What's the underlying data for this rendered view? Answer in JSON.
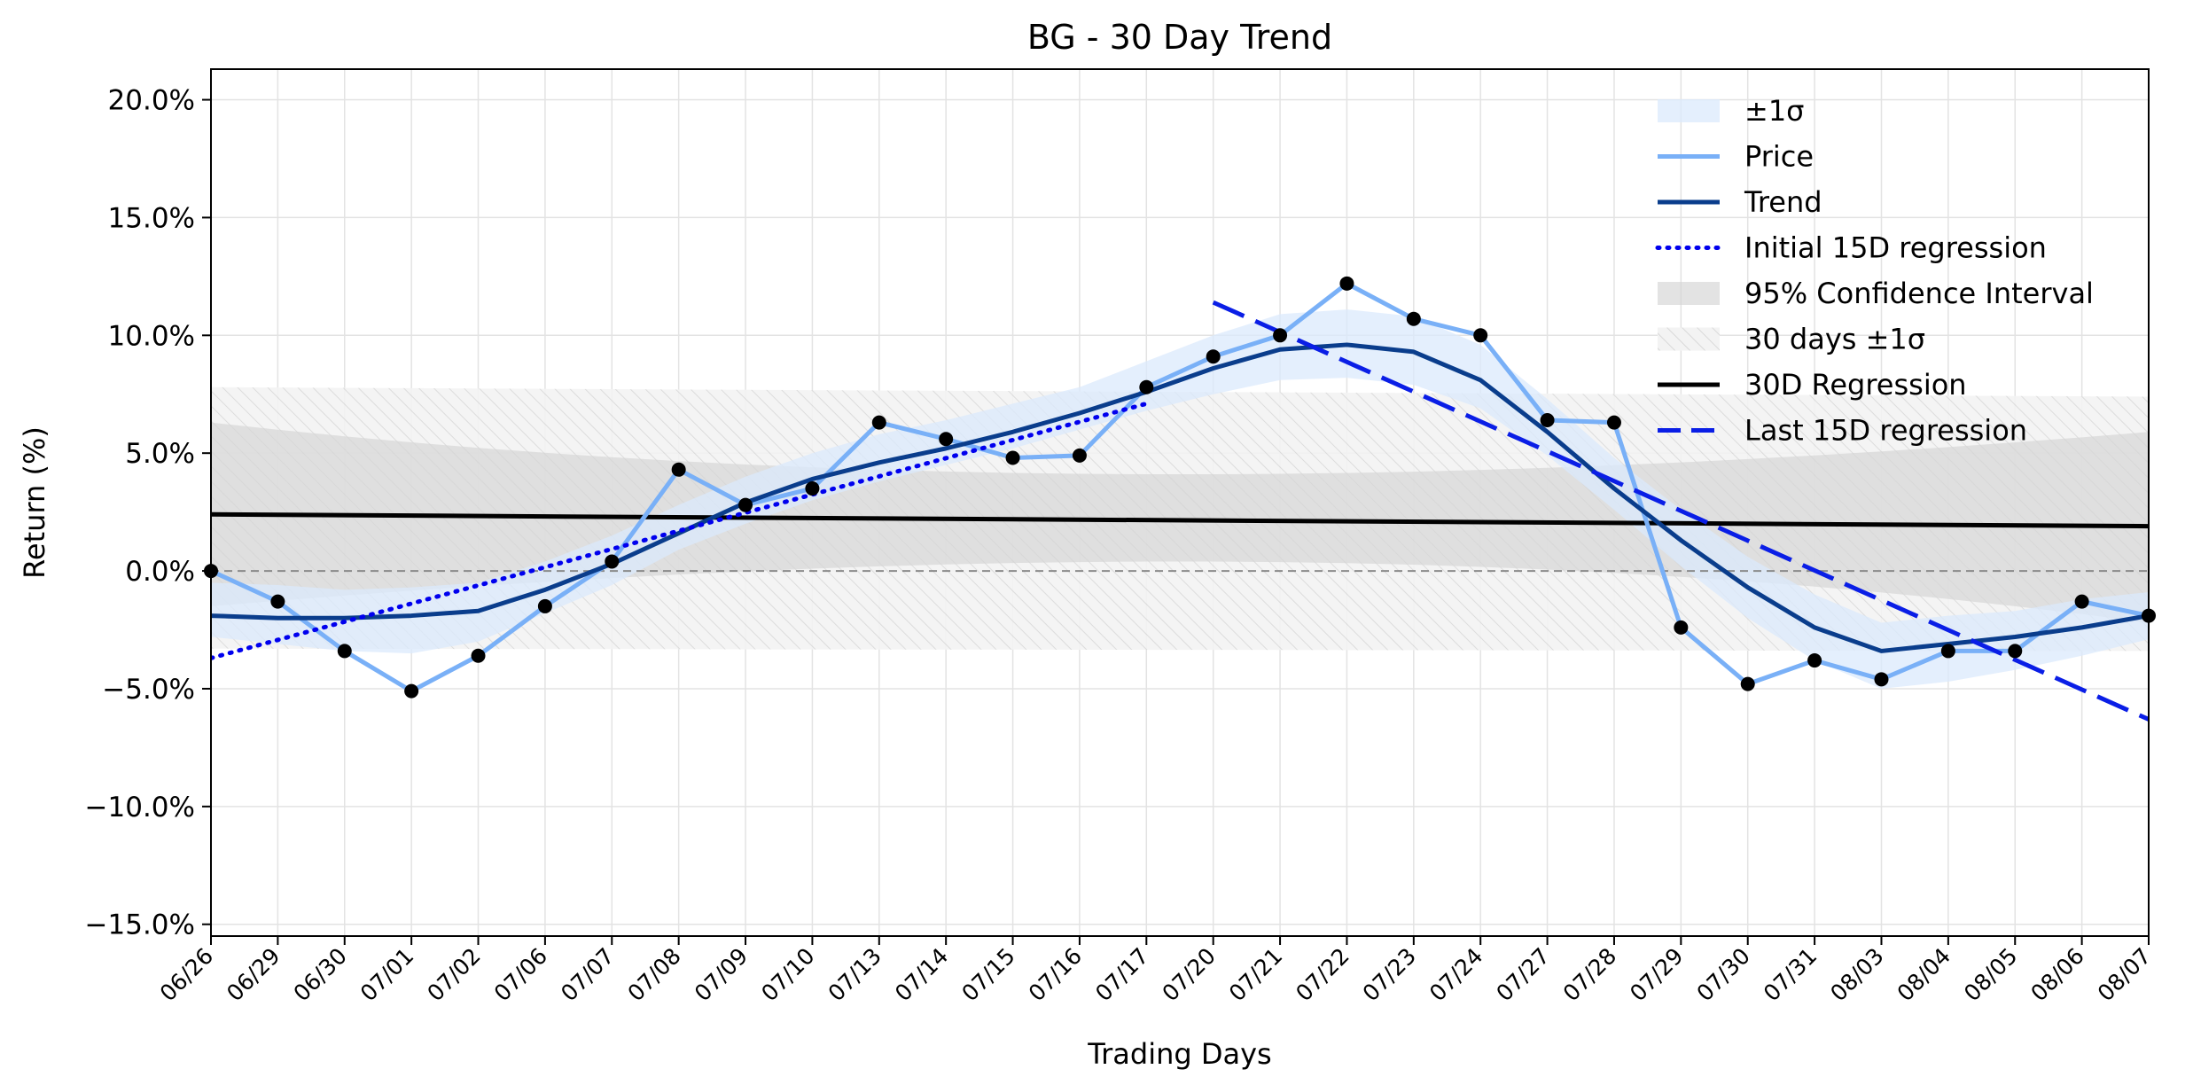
{
  "chart_data": {
    "type": "line",
    "title": "BG - 30 Day Trend",
    "xlabel": "Trading Days",
    "ylabel": "Return (%)",
    "ylim": [
      -15.5,
      21.3
    ],
    "y_ticks": [
      -15,
      -10,
      -5,
      0,
      5,
      10,
      15,
      20
    ],
    "y_tick_labels": [
      "−15.0%",
      "−10.0%",
      "−5.0%",
      "0.0%",
      "5.0%",
      "10.0%",
      "15.0%",
      "20.0%"
    ],
    "grid": true,
    "legend_position": "top-right",
    "categories": [
      "06/26",
      "06/29",
      "06/30",
      "07/01",
      "07/02",
      "07/06",
      "07/07",
      "07/08",
      "07/09",
      "07/10",
      "07/13",
      "07/14",
      "07/15",
      "07/16",
      "07/17",
      "07/20",
      "07/21",
      "07/22",
      "07/23",
      "07/24",
      "07/27",
      "07/28",
      "07/29",
      "07/30",
      "07/31",
      "08/03",
      "08/04",
      "08/05",
      "08/06",
      "08/07"
    ],
    "series": [
      {
        "name": "Price",
        "color": "#79b0f7",
        "values": [
          0.0,
          -1.3,
          -3.4,
          -5.1,
          -3.6,
          -1.5,
          0.4,
          4.3,
          2.8,
          3.5,
          6.3,
          5.6,
          4.8,
          4.9,
          7.8,
          9.1,
          10.0,
          12.2,
          10.7,
          10.0,
          6.4,
          6.3,
          -2.4,
          -4.8,
          -3.8,
          -4.6,
          -3.4,
          -3.4,
          -1.3,
          -1.9
        ]
      },
      {
        "name": "Trend",
        "color": "#0a3d8c",
        "values": [
          -1.9,
          -2.0,
          -2.0,
          -1.9,
          -1.7,
          -0.8,
          0.3,
          1.6,
          2.9,
          3.9,
          4.6,
          5.2,
          5.9,
          6.7,
          7.6,
          8.6,
          9.4,
          9.6,
          9.3,
          8.1,
          5.9,
          3.5,
          1.3,
          -0.7,
          -2.4,
          -3.4,
          -3.1,
          -2.8,
          -2.4,
          -1.9
        ]
      },
      {
        "name": "Initial 15D regression",
        "color": "#0000ee",
        "x_range": [
          0,
          14
        ],
        "endpoints": [
          -3.7,
          7.1
        ]
      },
      {
        "name": "Last 15D regression",
        "color": "#0a1ee6",
        "x_range": [
          15,
          29
        ],
        "endpoints": [
          11.4,
          -6.3
        ]
      },
      {
        "name": "30D Regression",
        "color": "#000000",
        "x_range": [
          0,
          29
        ],
        "endpoints": [
          2.4,
          1.9
        ]
      }
    ],
    "bands": {
      "sigma_band": {
        "name": "±1σ",
        "color": "#dbeafc",
        "lower": [
          -2.8,
          -3.1,
          -3.4,
          -3.5,
          -3.0,
          -1.8,
          -0.6,
          0.9,
          2.0,
          3.0,
          3.8,
          4.5,
          5.2,
          6.0,
          6.8,
          7.5,
          8.1,
          8.2,
          7.9,
          6.9,
          4.9,
          2.6,
          0.2,
          -2.0,
          -3.8,
          -5.0,
          -4.7,
          -4.2,
          -3.6,
          -2.9
        ],
        "upper": [
          -0.5,
          -0.6,
          -0.8,
          -0.7,
          -0.5,
          0.4,
          1.5,
          2.8,
          4.0,
          5.0,
          5.8,
          6.4,
          7.1,
          7.8,
          8.9,
          10.0,
          10.9,
          11.1,
          10.8,
          9.6,
          7.3,
          4.8,
          2.6,
          0.6,
          -1.0,
          -2.2,
          -1.9,
          -1.7,
          -1.2,
          -0.9
        ]
      },
      "confidence_band": {
        "name": "95% Confidence Interval",
        "color": "#d4d4d4",
        "lower_ends": [
          -1.5,
          -2.2
        ],
        "lower_mid": 0.4,
        "upper_ends": [
          6.3,
          5.9
        ],
        "upper_mid": 4.1
      },
      "thirty_day_sigma": {
        "name": "30 days ±1σ",
        "color": "#f2f2f2",
        "lower": [
          -3.3,
          -3.4
        ],
        "upper": [
          7.8,
          7.4
        ]
      }
    },
    "legend": [
      {
        "label": "±1σ",
        "kind": "patch",
        "color": "#dbeafc"
      },
      {
        "label": "Price",
        "kind": "line",
        "color": "#79b0f7"
      },
      {
        "label": "Trend",
        "kind": "line",
        "color": "#0a3d8c"
      },
      {
        "label": "Initial 15D regression",
        "kind": "dotted",
        "color": "#0000ee"
      },
      {
        "label": "95% Confidence Interval",
        "kind": "patch",
        "color": "#d4d4d4"
      },
      {
        "label": "30 days ±1σ",
        "kind": "hatch",
        "color": "#f2f2f2"
      },
      {
        "label": "30D Regression",
        "kind": "line",
        "color": "#000000"
      },
      {
        "label": "Last 15D regression",
        "kind": "dashed",
        "color": "#0a1ee6"
      }
    ]
  }
}
